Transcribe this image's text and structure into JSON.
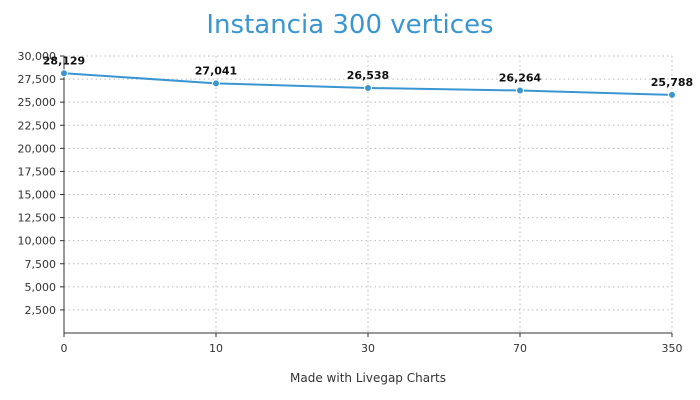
{
  "footer": {
    "credit": "Made with Livegap Charts"
  },
  "colors": {
    "title": "#3a96d0",
    "series": "#3a96d0",
    "grid": "#bbbbbb",
    "axis": "#333333"
  },
  "chart_data": {
    "type": "line",
    "title": "Instancia 300 vertices",
    "xlabel": "",
    "ylabel": "",
    "categories": [
      "0",
      "10",
      "30",
      "70",
      "350"
    ],
    "series": [
      {
        "values": [
          28129,
          27041,
          26538,
          26264,
          25788
        ],
        "data_labels": [
          "28,129",
          "27,041",
          "26,538",
          "26,264",
          "25,788"
        ]
      }
    ],
    "ylim": [
      0,
      30000
    ],
    "y_ticks": [
      "2,500",
      "5,000",
      "7,500",
      "10,000",
      "12,500",
      "15,000",
      "17,500",
      "20,000",
      "22,500",
      "25,000",
      "27,500",
      "30,000"
    ],
    "grid": true,
    "legend": "none"
  }
}
